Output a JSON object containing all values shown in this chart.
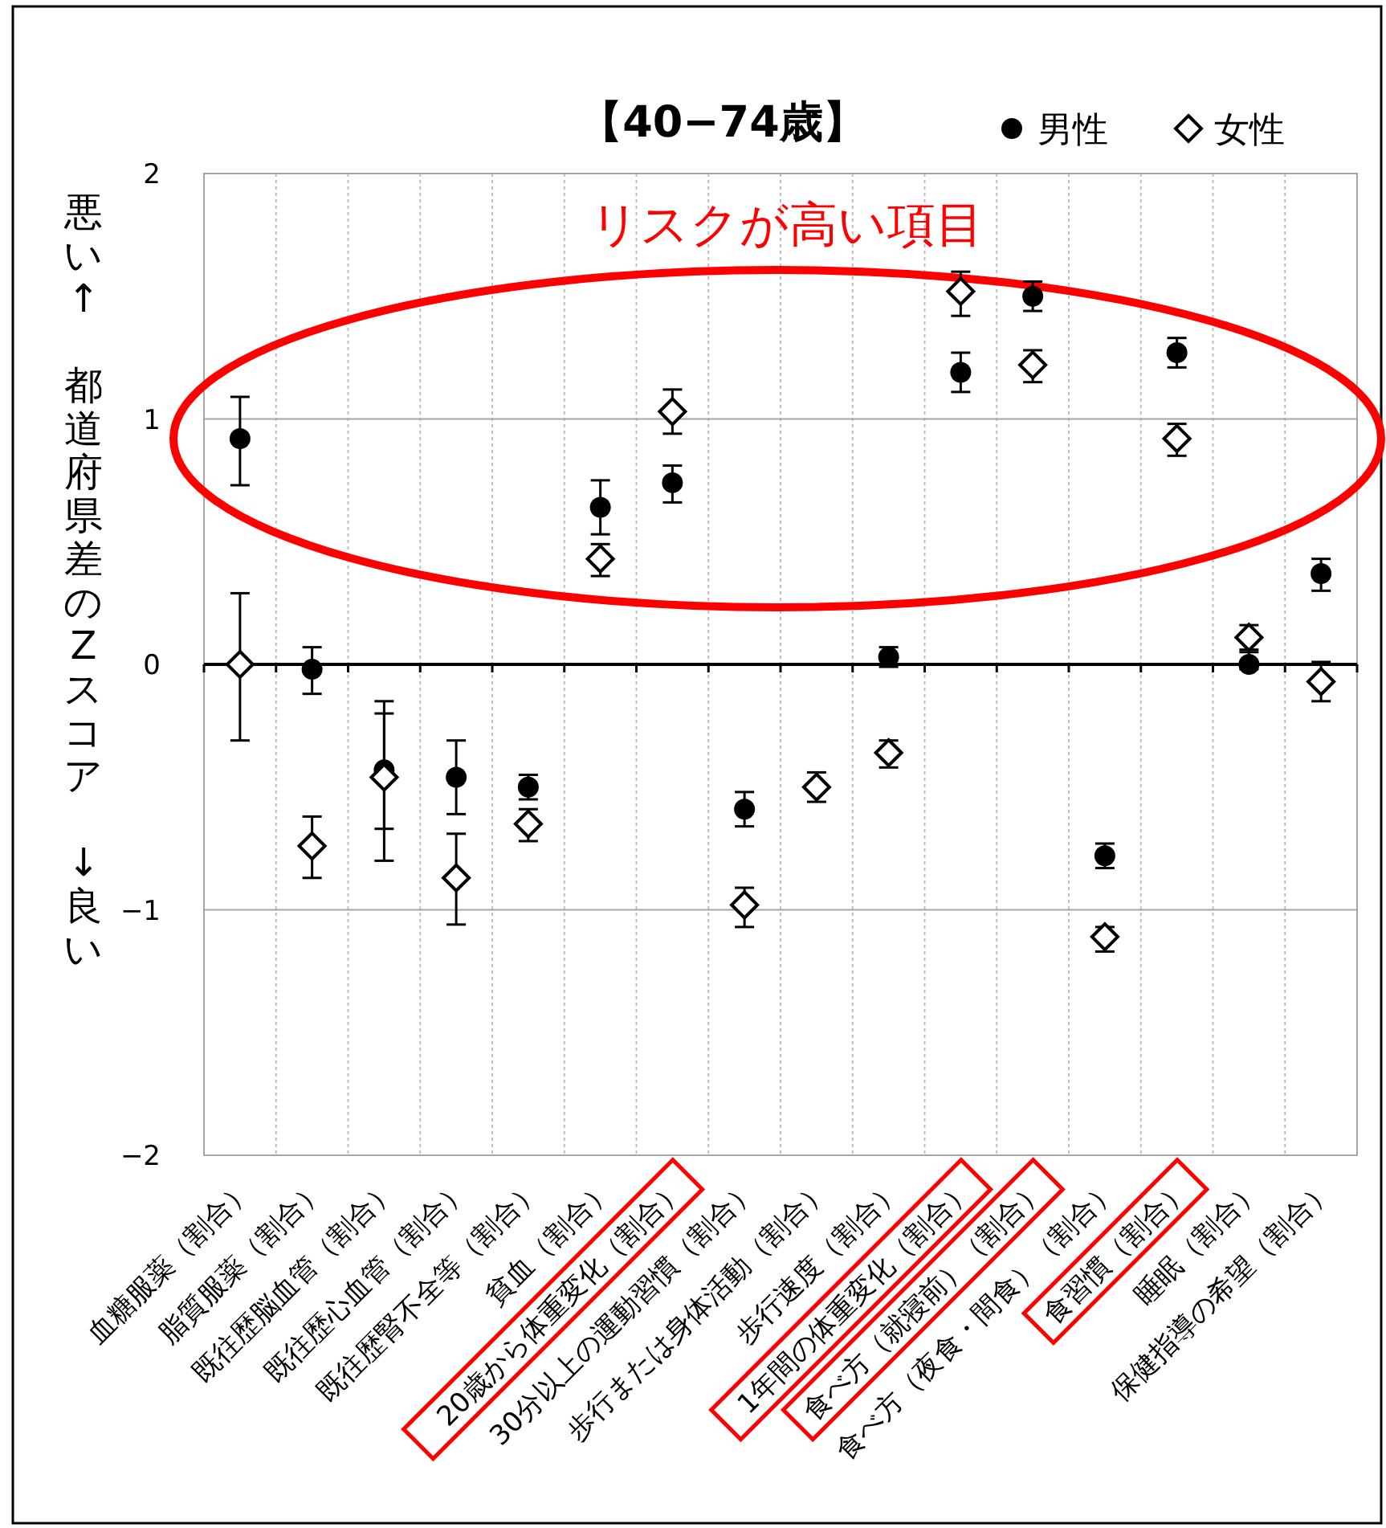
{
  "chart_data": {
    "type": "scatter",
    "title": "【40−74歳】",
    "ylabel": "悪い↑　都道府県差のZスコア　↓良い",
    "categories": [
      "血糖服薬（割合）",
      "脂質服薬（割合）",
      "既往歴脳血管（割合）",
      "既往歴心血管（割合）",
      "既往歴腎不全等（割合）",
      "貧血（割合）",
      "20歳から体重変化（割合）",
      "30分以上の運動習慣（割合）",
      "歩行または身体活動（割合）",
      "歩行速度（割合）",
      "1年間の体重変化（割合）",
      "食べ方（就寝前）（割合）",
      "食べ方（夜食・間食）（割合）",
      "食習慣（割合）",
      "睡眠（割合）",
      "保健指導の希望（割合）"
    ],
    "series": [
      {
        "name": "男性",
        "color": "#000000",
        "marker": "circle",
        "values": [
          0.92,
          -0.02,
          -0.43,
          -0.46,
          -0.5,
          0.64,
          0.74,
          -0.59,
          null,
          0.03,
          1.19,
          1.5,
          -0.78,
          1.27,
          0.0,
          0.37
        ],
        "errors": [
          [
            0.73,
            1.09
          ],
          [
            -0.12,
            0.07
          ],
          [
            -0.67,
            -0.2
          ],
          [
            -0.61,
            -0.31
          ],
          [
            -0.55,
            -0.45
          ],
          [
            0.53,
            0.75
          ],
          [
            0.66,
            0.81
          ],
          [
            -0.66,
            -0.52
          ],
          null,
          [
            -0.01,
            0.07
          ],
          [
            1.11,
            1.27
          ],
          [
            1.44,
            1.56
          ],
          [
            -0.83,
            -0.73
          ],
          [
            1.21,
            1.33
          ],
          [
            -0.02,
            0.05
          ],
          [
            0.3,
            0.43
          ]
        ]
      },
      {
        "name": "女性",
        "color": "#000000",
        "marker": "diamond",
        "values": [
          0.0,
          -0.74,
          -0.46,
          -0.87,
          -0.65,
          0.43,
          1.03,
          -0.98,
          -0.5,
          -0.36,
          1.52,
          1.22,
          -1.11,
          0.92,
          0.11,
          -0.07
        ],
        "errors": [
          [
            -0.31,
            0.29
          ],
          [
            -0.87,
            -0.62
          ],
          [
            -0.8,
            -0.15
          ],
          [
            -1.06,
            -0.69
          ],
          [
            -0.72,
            -0.59
          ],
          [
            0.36,
            0.49
          ],
          [
            0.94,
            1.12
          ],
          [
            -1.07,
            -0.91
          ],
          [
            -0.56,
            -0.44
          ],
          [
            -0.42,
            -0.31
          ],
          [
            1.42,
            1.6
          ],
          [
            1.15,
            1.28
          ],
          [
            -1.17,
            -1.07
          ],
          [
            0.85,
            0.98
          ],
          [
            0.06,
            0.16
          ],
          [
            -0.15,
            0.01
          ]
        ]
      }
    ],
    "ylim": [
      -2,
      2
    ],
    "yticks": [
      {
        "value": -2,
        "label": "−2"
      },
      {
        "value": -1,
        "label": "−1"
      },
      0,
      1,
      2
    ],
    "grid": true,
    "legend": "top right",
    "annotations": [
      "リスクが高い項目"
    ]
  }
}
